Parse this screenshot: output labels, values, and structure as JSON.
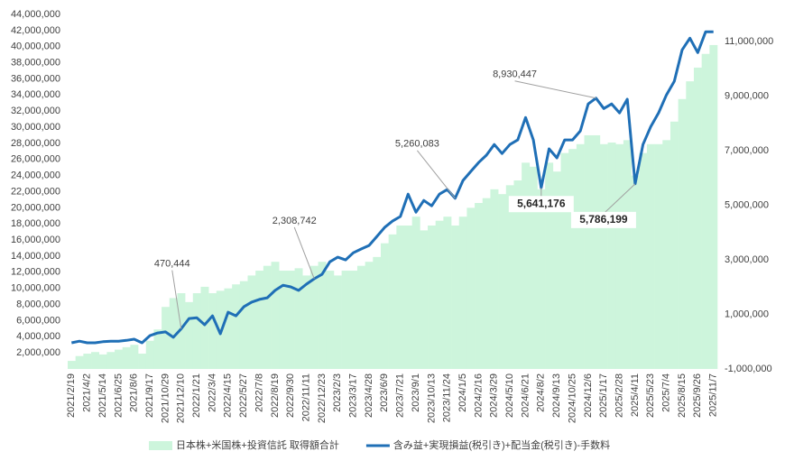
{
  "chart_data": {
    "type": "bar-line",
    "categories": [
      "2021/2/19",
      null,
      "2021/4/2",
      null,
      "2021/5/14",
      null,
      "2021/6/25",
      null,
      "2021/8/6",
      null,
      "2021/9/17",
      null,
      "2021/10/29",
      null,
      "2021/12/10",
      null,
      "2022/1/21",
      null,
      "2022/3/4",
      null,
      "2022/4/15",
      null,
      "2022/5/27",
      null,
      "2022/7/8",
      null,
      "2022/8/19",
      null,
      "2022/9/30",
      null,
      "2022/11/11",
      null,
      "2022/12/23",
      null,
      "2023/2/3",
      null,
      "2023/3/17",
      null,
      "2023/4/28",
      null,
      "2023/6/9",
      null,
      "2023/7/21",
      null,
      "2023/9/1",
      null,
      "2023/10/13",
      null,
      "2023/11/24",
      null,
      "2024/1/5",
      null,
      "2024/2/16",
      null,
      "2024/3/29",
      null,
      "2024/5/10",
      null,
      "2024/6/21",
      null,
      "2024/8/2",
      null,
      "2024/9/13",
      null,
      "2024/10/25",
      null,
      "2024/12/6",
      null,
      "2025/1/17",
      null,
      "2025/2/28",
      null,
      "2025/4/11",
      null,
      "2025/5/23",
      null,
      "2025/7/4",
      null,
      "2025/8/15",
      null,
      "2025/9/26",
      null,
      "2025/11/7"
    ],
    "series": [
      {
        "name": "日本株+米国株+投資信託 取得額合計",
        "type": "bar",
        "color": "#cdf5dc",
        "values": [
          1000000,
          1600000,
          1900000,
          2100000,
          1800000,
          2100000,
          2400000,
          2700000,
          3000000,
          1900000,
          3500000,
          4900000,
          7700000,
          8800000,
          9400000,
          8300000,
          9400000,
          10200000,
          9400000,
          9700000,
          10000000,
          10500000,
          10900000,
          11600000,
          12200000,
          12800000,
          13300000,
          12200000,
          12200000,
          12500000,
          11600000,
          12800000,
          13300000,
          12200000,
          11600000,
          12200000,
          12200000,
          12800000,
          13300000,
          13900000,
          15600000,
          16700000,
          17800000,
          17800000,
          18900000,
          17200000,
          17800000,
          18400000,
          18900000,
          17800000,
          18900000,
          20000000,
          20600000,
          21200000,
          22300000,
          21700000,
          22800000,
          23400000,
          25600000,
          25100000,
          22300000,
          25600000,
          24500000,
          26800000,
          27300000,
          27900000,
          29000000,
          29000000,
          27900000,
          28100000,
          27900000,
          28400000,
          24000000,
          26800000,
          27900000,
          27900000,
          28400000,
          30700000,
          33500000,
          35700000,
          37400000,
          39100000,
          40200000
        ]
      },
      {
        "name": "含み益+実現損益(税引き)+配当金(税引き)-手数料",
        "type": "line",
        "axis": "y2",
        "color": "#1f6fb6",
        "values": [
          -40000,
          20000,
          -40000,
          -40000,
          0,
          20000,
          20000,
          50000,
          90000,
          -40000,
          220000,
          320000,
          360000,
          160000,
          470444,
          850000,
          880000,
          620000,
          950000,
          290000,
          1080000,
          950000,
          1280000,
          1450000,
          1550000,
          1610000,
          1880000,
          2070000,
          2010000,
          1880000,
          2110000,
          2308742,
          2470000,
          2930000,
          3100000,
          3000000,
          3260000,
          3400000,
          3530000,
          3860000,
          4190000,
          4420000,
          4590000,
          5410000,
          4750000,
          5180000,
          4980000,
          5410000,
          5580000,
          5260083,
          5910000,
          6240000,
          6570000,
          6840000,
          7230000,
          6900000,
          7230000,
          7400000,
          8220000,
          7400000,
          5641176,
          7070000,
          6740000,
          7400000,
          7400000,
          7730000,
          8720000,
          8930447,
          8550000,
          8720000,
          8390000,
          8890000,
          5786199,
          7230000,
          7890000,
          8390000,
          9050000,
          9550000,
          10700000,
          11130000,
          10600000,
          11360000,
          11360000
        ]
      }
    ],
    "ylim": [
      0,
      44000000
    ],
    "yticks": [
      {
        "value": 2000000,
        "label": "2,000,000"
      },
      {
        "value": 4000000,
        "label": "4,000,000"
      },
      {
        "value": 6000000,
        "label": "6,000,000"
      },
      {
        "value": 8000000,
        "label": "8,000,000"
      },
      {
        "value": 10000000,
        "label": "10,000,000"
      },
      {
        "value": 12000000,
        "label": "12,000,000"
      },
      {
        "value": 14000000,
        "label": "14,000,000"
      },
      {
        "value": 16000000,
        "label": "16,000,000"
      },
      {
        "value": 18000000,
        "label": "18,000,000"
      },
      {
        "value": 20000000,
        "label": "20,000,000"
      },
      {
        "value": 22000000,
        "label": "22,000,000"
      },
      {
        "value": 24000000,
        "label": "24,000,000"
      },
      {
        "value": 26000000,
        "label": "26,000,000"
      },
      {
        "value": 28000000,
        "label": "28,000,000"
      },
      {
        "value": 30000000,
        "label": "30,000,000"
      },
      {
        "value": 32000000,
        "label": "32,000,000"
      },
      {
        "value": 34000000,
        "label": "34,000,000"
      },
      {
        "value": 36000000,
        "label": "36,000,000"
      },
      {
        "value": 38000000,
        "label": "38,000,000"
      },
      {
        "value": 40000000,
        "label": "40,000,000"
      },
      {
        "value": 42000000,
        "label": "42,000,000"
      },
      {
        "value": 44000000,
        "label": "44,000,000"
      }
    ],
    "y2lim": [
      -1000000,
      12000000
    ],
    "y2ticks": [
      {
        "value": -1000000,
        "label": "-1,000,000"
      },
      {
        "value": 1000000,
        "label": "1,000,000"
      },
      {
        "value": 3000000,
        "label": "3,000,000"
      },
      {
        "value": 5000000,
        "label": "5,000,000"
      },
      {
        "value": 7000000,
        "label": "7,000,000"
      },
      {
        "value": 9000000,
        "label": "9,000,000"
      },
      {
        "value": 11000000,
        "label": "11,000,000"
      }
    ],
    "grid": false,
    "legend": "bottom",
    "annotations": [
      {
        "value": 470444,
        "label": "470,444",
        "bold": false
      },
      {
        "value": 2308742,
        "label": "2,308,742",
        "bold": false
      },
      {
        "value": 5260083,
        "label": "5,260,083",
        "bold": false
      },
      {
        "value": 8930447,
        "label": "8,930,447",
        "bold": false
      },
      {
        "value": 5641176,
        "label": "5,641,176",
        "bold": true
      },
      {
        "value": 5786199,
        "label": "5,786,199",
        "bold": true
      }
    ]
  }
}
